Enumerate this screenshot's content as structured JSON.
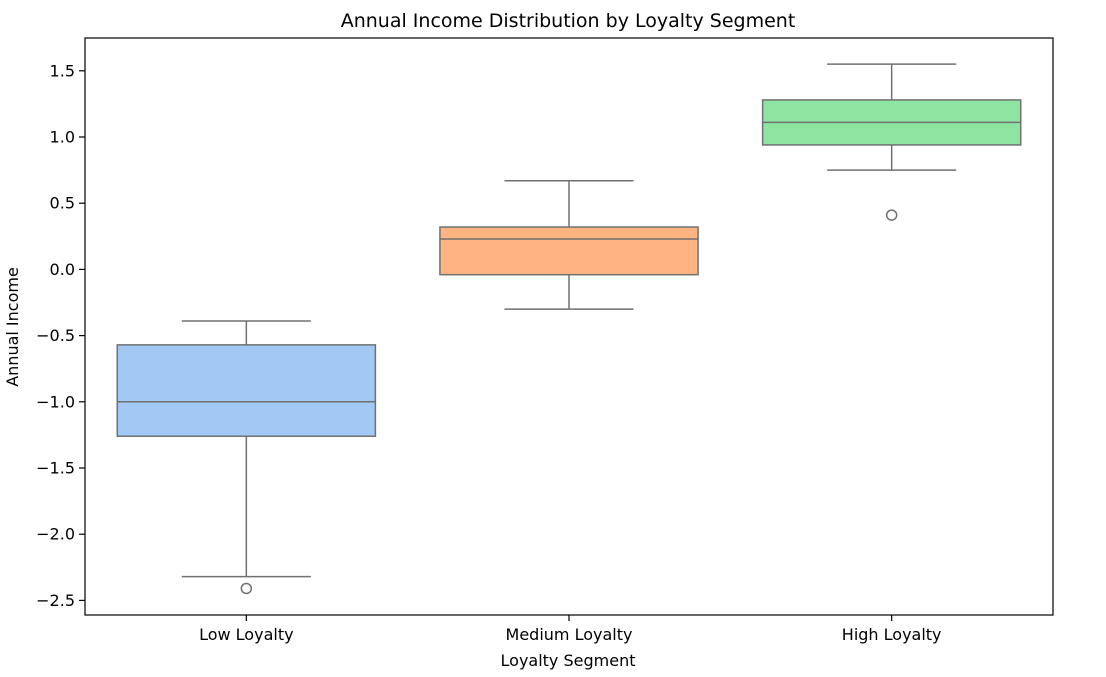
{
  "chart_data": {
    "type": "box",
    "title": "Annual Income Distribution by Loyalty Segment",
    "xlabel": "Loyalty Segment",
    "ylabel": "Annual Income",
    "ylim": [
      -2.6,
      1.75
    ],
    "yticks": [
      1.5,
      1.0,
      0.5,
      0.0,
      -0.5,
      -1.0,
      -1.5,
      -2.0,
      -2.5
    ],
    "ytick_labels": [
      "1.5",
      "1.0",
      "0.5",
      "0.0",
      "−0.5",
      "−1.0",
      "−1.5",
      "−2.0",
      "−2.5"
    ],
    "grid": false,
    "categories": [
      "Low Loyalty",
      "Medium Loyalty",
      "High Loyalty"
    ],
    "boxes": [
      {
        "category": "Low Loyalty",
        "whisker_low": -2.32,
        "q1": -1.26,
        "median": -1.0,
        "q3": -0.57,
        "whisker_high": -0.39,
        "outliers": [
          -2.41
        ],
        "color": "#a1c9f4"
      },
      {
        "category": "Medium Loyalty",
        "whisker_low": -0.3,
        "q1": -0.04,
        "median": 0.23,
        "q3": 0.32,
        "whisker_high": 0.67,
        "outliers": [],
        "color": "#ffb482"
      },
      {
        "category": "High Loyalty",
        "whisker_low": 0.75,
        "q1": 0.94,
        "median": 1.11,
        "q3": 1.28,
        "whisker_high": 1.55,
        "outliers": [
          0.41
        ],
        "color": "#8de5a1"
      }
    ],
    "line_color": "#707070"
  }
}
